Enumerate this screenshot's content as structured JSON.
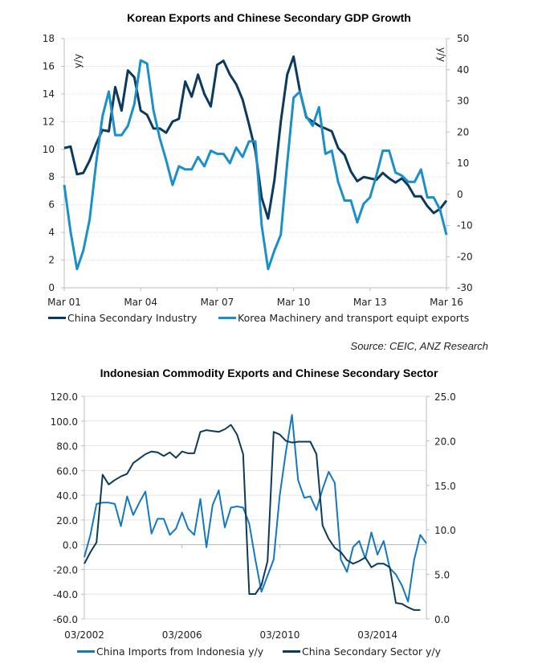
{
  "colors": {
    "dark": "#0d3a5c",
    "light": "#1a8fc9",
    "light2": "#1478c0",
    "grid": "#d8e3ea",
    "grid2": "#e3e3e3",
    "axis": "#bdbdbd"
  },
  "source_note": "Source:  CEIC, ANZ Research",
  "chart_data": [
    {
      "type": "line",
      "title": "Korean Exports and Chinese Secondary GDP Growth",
      "ylabel_left": "y/y",
      "ylabel_right": "y/y",
      "ylim_left": [
        0,
        18
      ],
      "ylim_right": [
        -30,
        50
      ],
      "yticks_left": [
        "0",
        "2",
        "4",
        "6",
        "8",
        "10",
        "12",
        "14",
        "16",
        "18"
      ],
      "yticks_right": [
        "-30",
        "-20",
        "-10",
        "0",
        "10",
        "20",
        "30",
        "40",
        "50"
      ],
      "xticks": [
        "Mar 01",
        "Mar 04",
        "Mar 07",
        "Mar 10",
        "Mar 13",
        "Mar 16"
      ],
      "x_start": "Mar 01",
      "x_end": "Mar 16",
      "frequency": "quarterly",
      "grid": true,
      "legend_position": "bottom",
      "series": [
        {
          "name": "China Secondary Industry",
          "axis": "left",
          "color": "#0d3a5c",
          "values": [
            10.1,
            10.2,
            8.2,
            8.3,
            9.2,
            10.4,
            11.4,
            11.3,
            14.5,
            12.8,
            15.7,
            15.2,
            12.8,
            12.5,
            11.5,
            11.5,
            11.2,
            12.0,
            12.2,
            14.9,
            13.8,
            15.4,
            14.0,
            13.1,
            16.1,
            16.4,
            15.4,
            14.7,
            13.6,
            11.8,
            9.9,
            6.5,
            5.0,
            7.8,
            12.0,
            15.4,
            16.7,
            14.2,
            12.3,
            12.0,
            11.7,
            11.5,
            11.3,
            10.1,
            9.6,
            8.4,
            7.7,
            8.0,
            7.9,
            7.8,
            8.3,
            7.9,
            7.6,
            7.9,
            7.4,
            6.6,
            6.6,
            5.9,
            5.4,
            5.7,
            6.3
          ]
        },
        {
          "name": "Korea Machinery and transport equipt exports",
          "axis": "right",
          "color": "#1a8fc9",
          "values": [
            3,
            -12,
            -24,
            -18,
            -8,
            10,
            25,
            33,
            19,
            19,
            22,
            29,
            43,
            42,
            27,
            18,
            11,
            3,
            9,
            8,
            8,
            12,
            9,
            14,
            13,
            13,
            10,
            15,
            12,
            17,
            17,
            -10,
            -24,
            -18,
            -13,
            10,
            31,
            33,
            25,
            22,
            28,
            13,
            14,
            4,
            -2,
            -2,
            -9,
            -3,
            -1,
            6,
            14,
            14,
            7,
            6,
            4,
            4,
            8,
            -1,
            -1,
            -5,
            -13
          ]
        }
      ]
    },
    {
      "type": "line",
      "title": "Indonesian Commodity Exports and Chinese Secondary Sector",
      "ylim_left": [
        -60,
        120
      ],
      "ylim_right": [
        0,
        25
      ],
      "yticks_left": [
        "-60.0",
        "-40.0",
        "-20.0",
        "0.0",
        "20.0",
        "40.0",
        "60.0",
        "80.0",
        "100.0",
        "120.0"
      ],
      "yticks_right": [
        "0.0",
        "5.0",
        "10.0",
        "15.0",
        "20.0",
        "25.0"
      ],
      "xticks": [
        "03/2002",
        "03/2006",
        "03/2010",
        "03/2014"
      ],
      "x_start": "03/2002",
      "frequency": "quarterly",
      "grid": true,
      "legend_position": "bottom",
      "series": [
        {
          "name": "China Imports from Indonesia y/y",
          "axis": "left",
          "color": "#1478c0",
          "values": [
            -10,
            8,
            33,
            34,
            34,
            33,
            15,
            39,
            24,
            34,
            43,
            9,
            21,
            21,
            8,
            13,
            26,
            13,
            8,
            37,
            -2,
            32,
            44,
            14,
            30,
            31,
            30,
            17,
            -12,
            -38,
            -25,
            -12,
            40,
            75,
            105,
            52,
            38,
            39,
            28,
            45,
            59,
            50,
            -12,
            -22,
            -2,
            3,
            -11,
            10,
            -8,
            3,
            -19,
            -24,
            -33,
            -46,
            -12,
            8,
            1
          ]
        },
        {
          "name": "China Secondary Sector y/y",
          "axis": "right",
          "color": "#0d3a5c",
          "values": [
            6.2,
            7.5,
            8.6,
            16.2,
            15.1,
            15.6,
            16.0,
            16.3,
            17.5,
            18.0,
            18.5,
            18.8,
            18.7,
            18.3,
            18.7,
            18.1,
            18.8,
            18.6,
            18.6,
            21.0,
            21.2,
            21.1,
            21.0,
            21.3,
            21.8,
            20.7,
            18.5,
            2.8,
            2.8,
            3.8,
            6.5,
            21.0,
            20.7,
            20.0,
            19.8,
            19.9,
            19.9,
            19.9,
            18.5,
            10.5,
            9.0,
            8.0,
            7.5,
            6.6,
            6.2,
            6.5,
            6.9,
            5.8,
            6.2,
            6.2,
            5.8,
            1.8,
            1.7,
            1.3,
            1.0,
            1.0
          ]
        }
      ]
    }
  ]
}
